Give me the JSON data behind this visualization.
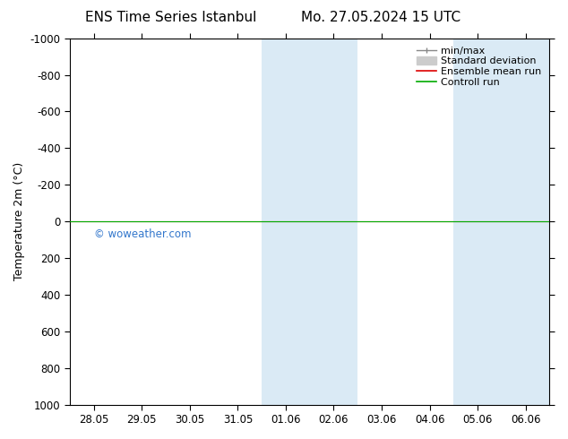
{
  "title_left": "ENS Time Series Istanbul",
  "title_right": "Mo. 27.05.2024 15 UTC",
  "ylabel": "Temperature 2m (°C)",
  "ylim_bottom": 1000,
  "ylim_top": -1000,
  "yticks": [
    -1000,
    -800,
    -600,
    -400,
    -200,
    0,
    200,
    400,
    600,
    800,
    1000
  ],
  "xlabel_dates": [
    "28.05",
    "29.05",
    "30.05",
    "31.05",
    "01.06",
    "02.06",
    "03.06",
    "04.06",
    "05.06",
    "06.06"
  ],
  "x_positions": [
    0,
    1,
    2,
    3,
    4,
    5,
    6,
    7,
    8,
    9
  ],
  "xlim": [
    -0.5,
    9.5
  ],
  "shaded_bands": [
    {
      "xmin": 3.5,
      "xmax": 5.5,
      "color": "#daeaf5"
    },
    {
      "xmin": 7.5,
      "xmax": 9.5,
      "color": "#daeaf5"
    }
  ],
  "control_run_y": 0,
  "ensemble_mean_y": 0,
  "watermark_text": "© woweather.com",
  "watermark_color": "#3377cc",
  "watermark_x_data": 0,
  "watermark_y_data": 40,
  "legend_items": [
    {
      "label": "min/max",
      "type": "minmax",
      "color": "#888888"
    },
    {
      "label": "Standard deviation",
      "type": "patch",
      "color": "#cccccc"
    },
    {
      "label": "Ensemble mean run",
      "type": "line",
      "color": "#dd0000"
    },
    {
      "label": "Controll run",
      "type": "line",
      "color": "#00aa00"
    }
  ],
  "background_color": "#ffffff",
  "spine_color": "#000000",
  "control_line_color": "#00aa00",
  "ensemble_line_color": "#dd0000",
  "title_fontsize": 11,
  "axis_label_fontsize": 9,
  "tick_fontsize": 8.5,
  "legend_fontsize": 8
}
